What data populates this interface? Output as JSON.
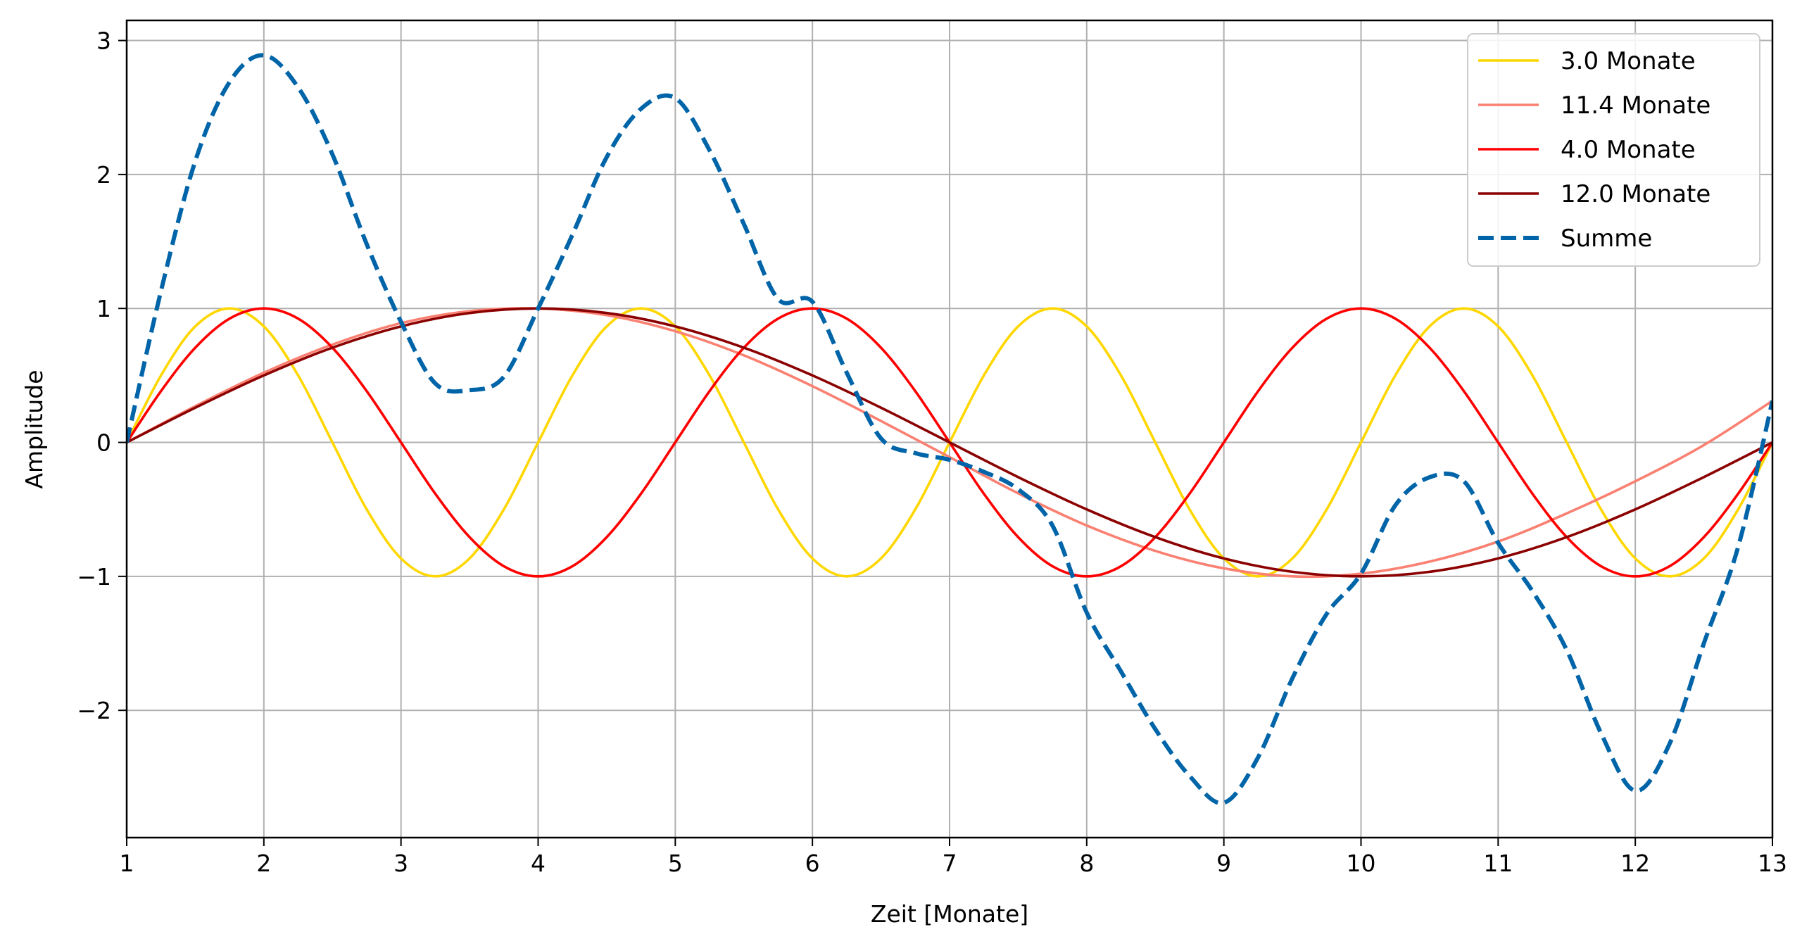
{
  "chart_data": {
    "type": "line",
    "title": "",
    "xlabel": "Zeit [Monate]",
    "ylabel": "Amplitude",
    "xlim": [
      1,
      13
    ],
    "ylim": [
      -2.95,
      3.15
    ],
    "x_ticks": [
      1,
      2,
      3,
      4,
      5,
      6,
      7,
      8,
      9,
      10,
      11,
      12,
      13
    ],
    "x_tick_labels": [
      "1",
      "2",
      "3",
      "4",
      "5",
      "6",
      "7",
      "8",
      "9",
      "10",
      "11",
      "12",
      "13"
    ],
    "y_ticks": [
      -2,
      -1,
      0,
      1,
      2,
      3
    ],
    "y_tick_labels": [
      "−2",
      "−1",
      "0",
      "1",
      "2",
      "3"
    ],
    "grid": true,
    "legend_position": "top-right",
    "series": [
      {
        "name": "3.0 Monate",
        "color": "#FFD700",
        "dash": "solid",
        "x": [
          1,
          1.25,
          1.5,
          1.75,
          2,
          2.25,
          2.5,
          2.75,
          3,
          3.25,
          3.5,
          3.75,
          4,
          4.25,
          4.5,
          4.75,
          5,
          5.25,
          5.5,
          5.75,
          6,
          6.25,
          6.5,
          6.75,
          7,
          7.25,
          7.5,
          7.75,
          8,
          8.25,
          8.5,
          8.75,
          9,
          9.25,
          9.5,
          9.75,
          10,
          10.25,
          10.5,
          10.75,
          11,
          11.25,
          11.5,
          11.75,
          12,
          12.25,
          12.5,
          12.75,
          13
        ],
        "values": [
          0,
          0.5,
          0.866,
          1,
          0.866,
          0.5,
          0,
          -0.5,
          -0.866,
          -1,
          -0.866,
          -0.5,
          0,
          0.5,
          0.866,
          1,
          0.866,
          0.5,
          0,
          -0.5,
          -0.866,
          -1,
          -0.866,
          -0.5,
          0,
          0.5,
          0.866,
          1,
          0.866,
          0.5,
          0,
          -0.5,
          -0.866,
          -1,
          -0.866,
          -0.5,
          0,
          0.5,
          0.866,
          1,
          0.866,
          0.5,
          0,
          -0.5,
          -0.866,
          -1,
          -0.866,
          -0.5,
          0
        ]
      },
      {
        "name": "11.4 Monate",
        "color": "#FA8072",
        "dash": "solid",
        "x": [
          1,
          1.5,
          2,
          2.5,
          3,
          3.5,
          4,
          4.5,
          5,
          5.5,
          6,
          6.5,
          7,
          7.5,
          8,
          8.5,
          9,
          9.5,
          10,
          10.5,
          11,
          11.5,
          12,
          12.5,
          13
        ],
        "values": [
          0,
          0.27,
          0.52,
          0.73,
          0.89,
          0.98,
          1,
          0.95,
          0.83,
          0.65,
          0.42,
          0.16,
          -0.11,
          -0.38,
          -0.62,
          -0.81,
          -0.94,
          -1,
          -0.98,
          -0.89,
          -0.74,
          -0.53,
          -0.29,
          -0.02,
          0.31
        ]
      },
      {
        "name": "4.0 Monate",
        "color": "#FF0000",
        "dash": "solid",
        "x": [
          1,
          1.25,
          1.5,
          1.75,
          2,
          2.25,
          2.5,
          2.75,
          3,
          3.25,
          3.5,
          3.75,
          4,
          4.25,
          4.5,
          4.75,
          5,
          5.25,
          5.5,
          5.75,
          6,
          6.25,
          6.5,
          6.75,
          7,
          7.25,
          7.5,
          7.75,
          8,
          8.25,
          8.5,
          8.75,
          9,
          9.25,
          9.5,
          9.75,
          10,
          10.25,
          10.5,
          10.75,
          11,
          11.25,
          11.5,
          11.75,
          12,
          12.25,
          12.5,
          12.75,
          13
        ],
        "values": [
          0,
          0.383,
          0.707,
          0.924,
          1,
          0.924,
          0.707,
          0.383,
          0,
          -0.383,
          -0.707,
          -0.924,
          -1,
          -0.924,
          -0.707,
          -0.383,
          0,
          0.383,
          0.707,
          0.924,
          1,
          0.924,
          0.707,
          0.383,
          0,
          -0.383,
          -0.707,
          -0.924,
          -1,
          -0.924,
          -0.707,
          -0.383,
          0,
          0.383,
          0.707,
          0.924,
          1,
          0.924,
          0.707,
          0.383,
          0,
          -0.383,
          -0.707,
          -0.924,
          -1,
          -0.924,
          -0.707,
          -0.383,
          0
        ]
      },
      {
        "name": "12.0 Monate",
        "color": "#8B0000",
        "dash": "solid",
        "x": [
          1,
          1.5,
          2,
          2.5,
          3,
          3.5,
          4,
          4.5,
          5,
          5.5,
          6,
          6.5,
          7,
          7.5,
          8,
          8.5,
          9,
          9.5,
          10,
          10.5,
          11,
          11.5,
          12,
          12.5,
          13
        ],
        "values": [
          0,
          0.259,
          0.5,
          0.707,
          0.866,
          0.966,
          1,
          0.966,
          0.866,
          0.707,
          0.5,
          0.259,
          0,
          -0.259,
          -0.5,
          -0.707,
          -0.866,
          -0.966,
          -1,
          -0.966,
          -0.866,
          -0.707,
          -0.5,
          -0.259,
          0
        ]
      },
      {
        "name": "Summe",
        "color": "#0064A8",
        "dash": "dashed",
        "x": [
          1,
          1.25,
          1.5,
          1.75,
          2,
          2.25,
          2.5,
          2.75,
          3,
          3.25,
          3.5,
          3.75,
          4,
          4.25,
          4.5,
          4.75,
          5,
          5.25,
          5.5,
          5.75,
          6,
          6.25,
          6.5,
          6.75,
          7,
          7.25,
          7.5,
          7.75,
          8,
          8.25,
          8.5,
          8.75,
          9,
          9.25,
          9.5,
          9.75,
          10,
          10.25,
          10.5,
          10.75,
          11,
          11.25,
          11.5,
          11.75,
          12,
          12.25,
          12.5,
          12.75,
          13
        ],
        "values": [
          0,
          1.13,
          2.1,
          2.69,
          2.89,
          2.65,
          2.15,
          1.48,
          0.9,
          0.44,
          0.39,
          0.49,
          1,
          1.55,
          2.13,
          2.49,
          2.57,
          2.18,
          1.63,
          1.07,
          1.05,
          0.52,
          0.03,
          -0.08,
          -0.13,
          -0.22,
          -0.35,
          -0.62,
          -1.27,
          -1.71,
          -2.14,
          -2.49,
          -2.69,
          -2.35,
          -1.76,
          -1.28,
          -0.98,
          -0.47,
          -0.26,
          -0.29,
          -0.75,
          -1.11,
          -1.55,
          -2.17,
          -2.6,
          -2.25,
          -1.5,
          -0.78,
          0.31
        ]
      }
    ]
  }
}
